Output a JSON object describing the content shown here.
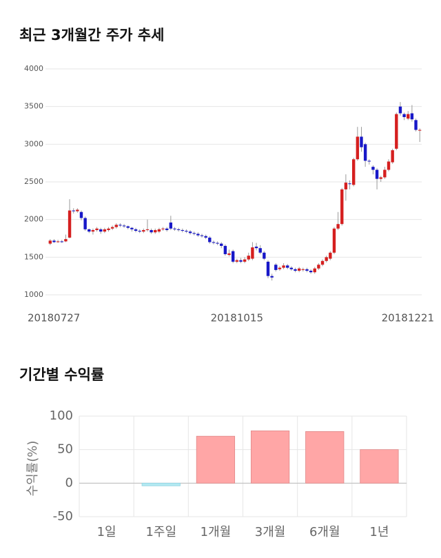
{
  "chart_data": [
    {
      "type": "candlestick",
      "title": "최근 3개월간 주가 추세",
      "categories": [
        "20180727",
        null,
        null,
        null,
        null,
        null,
        null,
        null,
        null,
        null,
        null,
        null,
        null,
        null,
        null,
        null,
        null,
        null,
        null,
        null,
        null,
        null,
        null,
        null,
        null,
        null,
        null,
        null,
        null,
        null,
        null,
        null,
        null,
        null,
        null,
        null,
        null,
        null,
        null,
        null,
        null,
        null,
        null,
        null,
        null,
        null,
        null,
        null,
        "20181015",
        null,
        null,
        null,
        null,
        null,
        null,
        null,
        null,
        null,
        null,
        null,
        null,
        null,
        null,
        null,
        null,
        null,
        null,
        null,
        null,
        null,
        null,
        null,
        null,
        null,
        null,
        null,
        null,
        null,
        null,
        null,
        null,
        null,
        null,
        null,
        null,
        null,
        null,
        null,
        null,
        null,
        null,
        null,
        null,
        null,
        null,
        "20181221"
      ],
      "open": [
        1680,
        1720,
        1700,
        1710,
        1710,
        1760,
        2120,
        2110,
        2100,
        2020,
        1870,
        1840,
        1860,
        1870,
        1840,
        1860,
        1880,
        1900,
        1930,
        1920,
        1910,
        1890,
        1870,
        1850,
        1840,
        1860,
        1860,
        1830,
        1840,
        1870,
        1880,
        1960,
        1880,
        1870,
        1860,
        1850,
        1840,
        1820,
        1810,
        1790,
        1780,
        1760,
        1700,
        1690,
        1680,
        1650,
        1530,
        1580,
        1440,
        1460,
        1440,
        1470,
        1480,
        1640,
        1620,
        1560,
        1440,
        1250,
        1400,
        1340,
        1360,
        1390,
        1360,
        1340,
        1320,
        1330,
        1340,
        1320,
        1300,
        1350,
        1400,
        1450,
        1480,
        1560,
        1880,
        1940,
        2400,
        2480,
        2460,
        2800,
        3100,
        3000,
        2780,
        2700,
        2660,
        2540,
        2560,
        2660,
        2760,
        2940,
        3500,
        3400,
        3340,
        3410,
        3320,
        3180
      ],
      "high": [
        1740,
        1740,
        1730,
        1730,
        1800,
        2270,
        2150,
        2150,
        2120,
        2040,
        1880,
        1880,
        1900,
        1890,
        1890,
        1900,
        1920,
        1950,
        1950,
        1940,
        1920,
        1900,
        1890,
        1870,
        1880,
        2000,
        1880,
        1880,
        1890,
        1900,
        1900,
        2050,
        1900,
        1890,
        1880,
        1870,
        1860,
        1840,
        1830,
        1810,
        1800,
        1780,
        1720,
        1710,
        1700,
        1670,
        1600,
        1600,
        1480,
        1490,
        1500,
        1560,
        1700,
        1690,
        1660,
        1580,
        1460,
        1280,
        1420,
        1380,
        1420,
        1410,
        1380,
        1360,
        1370,
        1360,
        1360,
        1340,
        1370,
        1420,
        1470,
        1520,
        1580,
        1900,
        2100,
        2420,
        2600,
        2520,
        2820,
        3230,
        3230,
        3020,
        2800,
        2720,
        2680,
        2580,
        2700,
        2800,
        2940,
        3420,
        3560,
        3420,
        3440,
        3520,
        3340,
        3210
      ],
      "low": [
        1660,
        1690,
        1690,
        1690,
        1700,
        1750,
        2080,
        2090,
        1990,
        1850,
        1820,
        1800,
        1840,
        1810,
        1820,
        1840,
        1860,
        1880,
        1900,
        1890,
        1870,
        1840,
        1830,
        1820,
        1820,
        1840,
        1810,
        1810,
        1820,
        1850,
        1840,
        1860,
        1850,
        1840,
        1830,
        1820,
        1800,
        1790,
        1770,
        1760,
        1740,
        1680,
        1670,
        1660,
        1620,
        1520,
        1510,
        1420,
        1420,
        1420,
        1420,
        1450,
        1460,
        1590,
        1540,
        1460,
        1220,
        1190,
        1310,
        1320,
        1340,
        1340,
        1320,
        1300,
        1300,
        1310,
        1300,
        1280,
        1280,
        1330,
        1380,
        1430,
        1460,
        1540,
        1860,
        1920,
        2250,
        2400,
        2440,
        2780,
        2900,
        2700,
        2730,
        2600,
        2400,
        2500,
        2540,
        2640,
        2740,
        2920,
        3380,
        3320,
        3320,
        3300,
        3170,
        3030
      ],
      "close": [
        1720,
        1700,
        1710,
        1700,
        1740,
        2120,
        2110,
        2130,
        2020,
        1870,
        1840,
        1860,
        1880,
        1840,
        1870,
        1880,
        1900,
        1930,
        1920,
        1910,
        1890,
        1870,
        1850,
        1840,
        1860,
        1870,
        1830,
        1860,
        1870,
        1880,
        1860,
        1880,
        1870,
        1860,
        1850,
        1840,
        1820,
        1810,
        1790,
        1780,
        1760,
        1700,
        1690,
        1680,
        1650,
        1540,
        1550,
        1440,
        1460,
        1440,
        1470,
        1520,
        1630,
        1620,
        1560,
        1480,
        1250,
        1230,
        1330,
        1360,
        1390,
        1360,
        1340,
        1320,
        1350,
        1340,
        1320,
        1300,
        1350,
        1400,
        1450,
        1500,
        1560,
        1880,
        1940,
        2400,
        2490,
        2470,
        2800,
        3100,
        2960,
        2780,
        2770,
        2660,
        2540,
        2560,
        2660,
        2770,
        2920,
        3400,
        3410,
        3360,
        3400,
        3330,
        3190,
        3190
      ],
      "up_color": "#d51f1f",
      "down_color": "#1818c8",
      "ylim": [
        1000,
        4000
      ],
      "yticks": [
        1000,
        1500,
        2000,
        2500,
        3000,
        3500,
        4000
      ],
      "grid": true
    },
    {
      "type": "bar",
      "title": "기간별 수익률",
      "y_label": "수익률(%)",
      "categories": [
        "1일",
        "1주일",
        "1개월",
        "3개월",
        "6개월",
        "1년"
      ],
      "values": [
        0,
        -4,
        70,
        78,
        77,
        50
      ],
      "positive_color": "#ffa6a6",
      "negative_color": "#b3e9f2",
      "ylim": [
        -50,
        100
      ],
      "yticks": [
        -50,
        0,
        50,
        100
      ],
      "grid": true
    }
  ]
}
